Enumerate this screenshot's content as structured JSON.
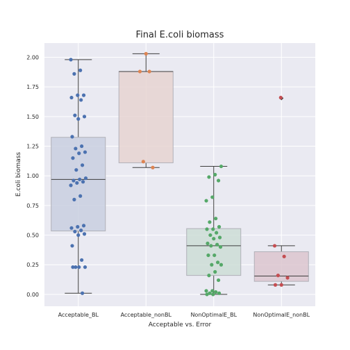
{
  "chart_data": {
    "type": "box",
    "title": "Final E.coli biomass",
    "xlabel": "Acceptable vs. Error",
    "ylabel": "E.coli biomass",
    "ylim": [
      -0.1,
      2.12
    ],
    "yticks": [
      0.0,
      0.25,
      0.5,
      0.75,
      1.0,
      1.25,
      1.5,
      1.75,
      2.0
    ],
    "ytick_labels": [
      "0.00",
      "0.25",
      "0.50",
      "0.75",
      "1.00",
      "1.25",
      "1.50",
      "1.75",
      "2.00"
    ],
    "grid": true,
    "categories": [
      "Acceptable_BL",
      "Acceptable_nonBL",
      "NonOptimalE_BL",
      "NonOptimalE_nonBL"
    ],
    "series": [
      {
        "category": "Acceptable_BL",
        "box_color": "#c9cfe1",
        "point_color": "#4c72b0",
        "whisker_low": 0.01,
        "q1": 0.535,
        "median": 0.97,
        "q3": 1.325,
        "whisker_high": 1.98,
        "outliers": [],
        "points": [
          1.98,
          1.89,
          1.86,
          1.68,
          1.68,
          1.66,
          1.64,
          1.51,
          1.5,
          1.48,
          1.33,
          1.25,
          1.23,
          1.2,
          1.19,
          1.15,
          1.09,
          1.05,
          0.98,
          0.97,
          0.96,
          0.95,
          0.94,
          0.92,
          0.83,
          0.8,
          0.58,
          0.57,
          0.56,
          0.54,
          0.53,
          0.51,
          0.5,
          0.41,
          0.29,
          0.23,
          0.23,
          0.23,
          0.23,
          0.01
        ]
      },
      {
        "category": "Acceptable_nonBL",
        "box_color": "#e6d3d1",
        "point_color": "#dd8452",
        "whisker_low": 1.07,
        "q1": 1.11,
        "median": 1.88,
        "q3": 1.88,
        "whisker_high": 2.03,
        "outliers": [],
        "points": [
          2.03,
          1.88,
          1.88,
          1.12,
          1.07
        ]
      },
      {
        "category": "NonOptimalE_BL",
        "box_color": "#cdddd6",
        "point_color": "#55a868",
        "whisker_low": 0.0,
        "q1": 0.16,
        "median": 0.41,
        "q3": 0.555,
        "whisker_high": 1.08,
        "outliers": [],
        "points": [
          1.08,
          1.01,
          0.99,
          0.96,
          0.82,
          0.79,
          0.64,
          0.61,
          0.57,
          0.55,
          0.55,
          0.52,
          0.5,
          0.48,
          0.47,
          0.43,
          0.42,
          0.41,
          0.4,
          0.33,
          0.33,
          0.27,
          0.25,
          0.25,
          0.19,
          0.16,
          0.12,
          0.03,
          0.03,
          0.02,
          0.01,
          0.01,
          0.0,
          0.0
        ]
      },
      {
        "category": "NonOptimalE_nonBL",
        "box_color": "#dcc6cf",
        "point_color": "#c44e52",
        "whisker_low": 0.08,
        "q1": 0.11,
        "median": 0.155,
        "q3": 0.36,
        "whisker_high": 0.41,
        "outliers": [
          1.655
        ],
        "points": [
          1.66,
          0.41,
          0.32,
          0.16,
          0.14,
          0.08,
          0.08
        ]
      }
    ]
  }
}
